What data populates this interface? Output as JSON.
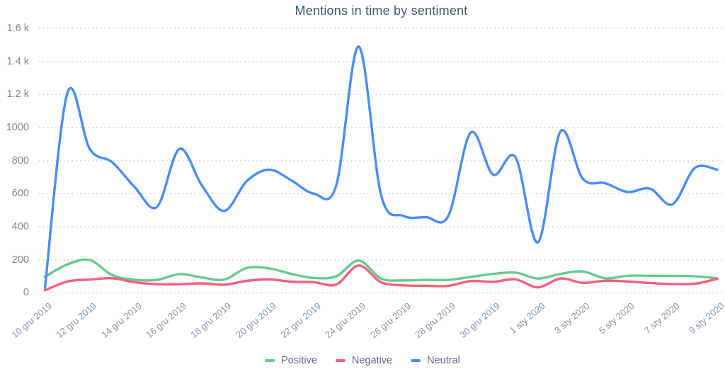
{
  "title": "Mentions in time by sentiment",
  "chart_data": {
    "type": "line",
    "title": "Mentions in time by sentiment",
    "smoothing": "spline",
    "grid": "horizontal-dotted",
    "legend_position": "bottom",
    "ylim": [
      0,
      1600
    ],
    "y_tick_interval": 200,
    "y_tick_labels": [
      "0",
      "200",
      "400",
      "600",
      "800",
      "1000",
      "1.2 k",
      "1.4 k",
      "1.6 k"
    ],
    "x_tick_labels": [
      "10 gru 2019",
      "12 gru 2019",
      "14 gru 2019",
      "16 gru 2019",
      "18 gru 2019",
      "20 gru 2019",
      "22 gru 2019",
      "24 gru 2019",
      "26 gru 2019",
      "28 gru 2019",
      "30 gru 2019",
      "1 sty 2020",
      "3 sty 2020",
      "5 sty 2020",
      "7 sty 2020",
      "9 sty 2020"
    ],
    "categories": [
      "10 gru 2019",
      "11 gru 2019",
      "12 gru 2019",
      "13 gru 2019",
      "14 gru 2019",
      "15 gru 2019",
      "16 gru 2019",
      "17 gru 2019",
      "18 gru 2019",
      "19 gru 2019",
      "20 gru 2019",
      "21 gru 2019",
      "22 gru 2019",
      "23 gru 2019",
      "24 gru 2019",
      "25 gru 2019",
      "26 gru 2019",
      "27 gru 2019",
      "28 gru 2019",
      "29 gru 2019",
      "30 gru 2019",
      "31 gru 2019",
      "1 sty 2020",
      "2 sty 2020",
      "3 sty 2020",
      "4 sty 2020",
      "5 sty 2020",
      "6 sty 2020",
      "7 sty 2020",
      "8 sty 2020",
      "9 sty 2020"
    ],
    "series": [
      {
        "name": "Positive",
        "color": "#67c98d",
        "values": [
          97,
          172,
          198,
          107,
          79,
          78,
          113,
          93,
          80,
          150,
          148,
          114,
          90,
          100,
          195,
          86,
          75,
          78,
          78,
          96,
          114,
          122,
          86,
          114,
          129,
          88,
          103,
          103,
          102,
          100,
          88
        ]
      },
      {
        "name": "Negative",
        "color": "#f4617c",
        "values": [
          15,
          68,
          80,
          88,
          64,
          52,
          52,
          57,
          49,
          72,
          81,
          67,
          64,
          50,
          165,
          64,
          45,
          42,
          42,
          71,
          66,
          81,
          33,
          86,
          60,
          73,
          68,
          59,
          53,
          55,
          84
        ]
      },
      {
        "name": "Neutral",
        "color": "#4a8cf5",
        "values": [
          30,
          1210,
          870,
          790,
          640,
          520,
          870,
          650,
          495,
          675,
          745,
          680,
          600,
          650,
          1490,
          590,
          465,
          458,
          465,
          970,
          715,
          820,
          305,
          975,
          690,
          663,
          610,
          630,
          535,
          755,
          745
        ]
      }
    ]
  },
  "legend": {
    "items": [
      {
        "label": "Positive",
        "color": "#67c98d"
      },
      {
        "label": "Negative",
        "color": "#f4617c"
      },
      {
        "label": "Neutral",
        "color": "#4a8cf5"
      }
    ]
  },
  "style": {
    "grid_color": "#cdd1da",
    "title_color": "#3f5673",
    "y_label_color": "#7e8799",
    "x_label_color": "#8a93a6",
    "legend_text_color": "#5d6b82",
    "background": "#ffffff"
  }
}
